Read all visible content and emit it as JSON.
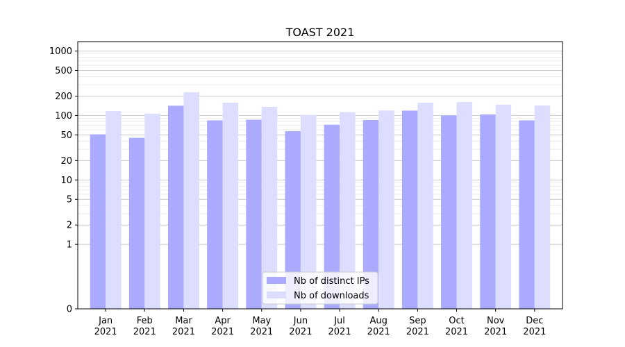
{
  "chart_data": {
    "type": "bar",
    "title": "TOAST 2021",
    "xlabel": "",
    "ylabel": "",
    "categories": [
      [
        "Jan",
        "2021"
      ],
      [
        "Feb",
        "2021"
      ],
      [
        "Mar",
        "2021"
      ],
      [
        "Apr",
        "2021"
      ],
      [
        "May",
        "2021"
      ],
      [
        "Jun",
        "2021"
      ],
      [
        "Jul",
        "2021"
      ],
      [
        "Aug",
        "2021"
      ],
      [
        "Sep",
        "2021"
      ],
      [
        "Oct",
        "2021"
      ],
      [
        "Nov",
        "2021"
      ],
      [
        "Dec",
        "2021"
      ]
    ],
    "series": [
      {
        "name": "Nb of distinct IPs",
        "color": "#aaaaff",
        "values": [
          51,
          45,
          142,
          84,
          86,
          57,
          72,
          85,
          119,
          100,
          104,
          84
        ]
      },
      {
        "name": "Nb of downloads",
        "color": "#ddddff",
        "values": [
          117,
          107,
          230,
          158,
          136,
          102,
          113,
          120,
          158,
          162,
          147,
          143
        ]
      }
    ],
    "yscale": "symlog",
    "ylim": [
      0,
      1400
    ],
    "yticks": [
      0,
      1,
      2,
      5,
      10,
      20,
      50,
      100,
      200,
      500,
      1000
    ],
    "ytick_labels": [
      "0",
      "1",
      "2",
      "5",
      "10",
      "20",
      "50",
      "100",
      "200",
      "500",
      "1000"
    ],
    "grid": {
      "major": true,
      "minor": true
    },
    "legend_position": "bottom-center"
  }
}
